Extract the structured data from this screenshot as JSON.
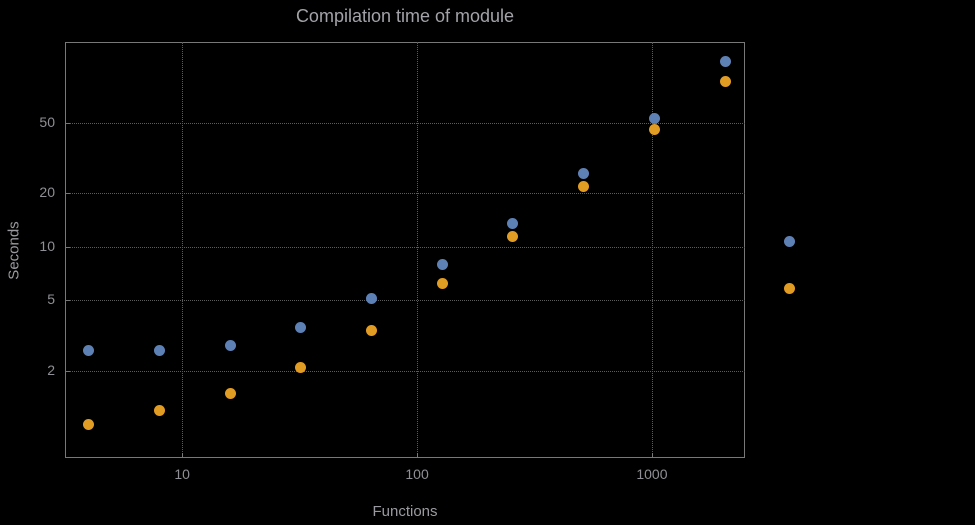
{
  "title": "Compilation time of module",
  "xlabel": "Functions",
  "ylabel": "Seconds",
  "colors": {
    "background": "#000000",
    "frame": "#787878",
    "grid": "#5c5c5c",
    "title_text": "#a2a2a8",
    "tick_text": "#8f8f95",
    "series1": "#5e81b5",
    "series2": "#e19c24"
  },
  "chart_data": {
    "type": "scatter",
    "title": "Compilation time of module",
    "xlabel": "Functions",
    "ylabel": "Seconds",
    "x_scale": "log",
    "y_scale": "log",
    "grid": true,
    "legend_position": "right",
    "x_range": [
      3.17,
      2490
    ],
    "y_range": [
      0.65,
      142
    ],
    "x": [
      4,
      8,
      16,
      32,
      64,
      128,
      256,
      512,
      1024,
      2048
    ],
    "series": [
      {
        "name": "series-1-blue",
        "color": "#5e81b5",
        "values": [
          2.6,
          2.6,
          2.8,
          3.5,
          5.1,
          8.0,
          13.5,
          26,
          53,
          110
        ]
      },
      {
        "name": "series-2-orange",
        "color": "#e19c24",
        "values": [
          1.0,
          1.2,
          1.5,
          2.1,
          3.4,
          6.2,
          11.5,
          22,
          46,
          85
        ]
      }
    ],
    "x_ticks": [
      {
        "value": 10,
        "label": "10"
      },
      {
        "value": 100,
        "label": "100"
      },
      {
        "value": 1000,
        "label": "1000"
      }
    ],
    "y_ticks": [
      {
        "value": 2,
        "label": "2"
      },
      {
        "value": 5,
        "label": "5"
      },
      {
        "value": 10,
        "label": "10"
      },
      {
        "value": 20,
        "label": "20"
      },
      {
        "value": 50,
        "label": "50"
      }
    ]
  },
  "legend": {
    "markers": [
      {
        "name": "legend-marker-series-1",
        "color": "#5e81b5"
      },
      {
        "name": "legend-marker-series-2",
        "color": "#e19c24"
      }
    ]
  }
}
